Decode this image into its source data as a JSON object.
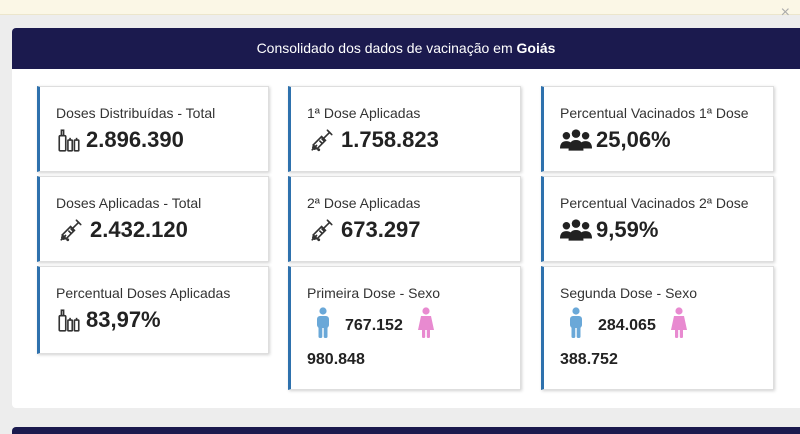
{
  "header": {
    "title_prefix": "Consolidado dos dados de vacinação em ",
    "title_state": "Goiás"
  },
  "colors": {
    "header_bg": "#1b1a4e",
    "card_accent": "#2e71ad",
    "male_icon": "#6aa8d8",
    "female_icon": "#e88ad0"
  },
  "cards": {
    "doses_distribuidas": {
      "title": "Doses Distribuídas - Total",
      "value": "2.896.390",
      "icon": "vial-icon"
    },
    "doses_aplicadas": {
      "title": "Doses Aplicadas - Total",
      "value": "2.432.120",
      "icon": "syringe-icon"
    },
    "percentual_aplicadas": {
      "title": "Percentual Doses Aplicadas",
      "value": "83,97%",
      "icon": "vial-icon"
    },
    "primeira_dose": {
      "title": "1ª Dose Aplicadas",
      "value": "1.758.823",
      "icon": "syringe-icon"
    },
    "segunda_dose": {
      "title": "2ª Dose Aplicadas",
      "value": "673.297",
      "icon": "syringe-icon"
    },
    "primeira_sexo": {
      "title": "Primeira Dose - Sexo",
      "male": "767.152",
      "female": "980.848"
    },
    "percentual_1a": {
      "title": "Percentual Vacinados 1ª Dose",
      "value": "25,06%",
      "icon": "people-group-icon"
    },
    "percentual_2a": {
      "title": "Percentual Vacinados 2ª Dose",
      "value": "9,59%",
      "icon": "people-group-icon"
    },
    "segunda_sexo": {
      "title": "Segunda Dose - Sexo",
      "male": "284.065",
      "female": "388.752"
    }
  },
  "close_glyph": "×"
}
